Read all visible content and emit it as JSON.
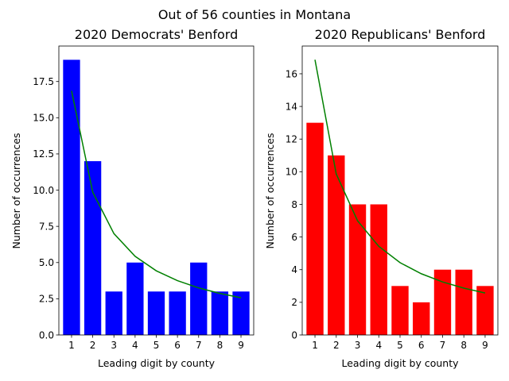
{
  "suptitle": "Out of 56 counties in Montana",
  "chart_data": [
    {
      "type": "bar",
      "title": "2020 Democrats' Benford",
      "xlabel": "Leading digit by county",
      "ylabel": "Number of occurrences",
      "categories": [
        "1",
        "2",
        "3",
        "4",
        "5",
        "6",
        "7",
        "8",
        "9"
      ],
      "values": [
        19,
        12,
        3,
        5,
        3,
        3,
        5,
        3,
        3
      ],
      "bar_color": "#0000ff",
      "expected": [
        16.86,
        9.86,
        7.0,
        5.43,
        4.43,
        3.75,
        3.25,
        2.87,
        2.57
      ],
      "expected_color": "#008000",
      "ylim": [
        0,
        19.95
      ],
      "yticks": [
        "0.0",
        "2.5",
        "5.0",
        "7.5",
        "10.0",
        "12.5",
        "15.0",
        "17.5"
      ],
      "ytick_values": [
        0,
        2.5,
        5,
        7.5,
        10,
        12.5,
        15,
        17.5
      ],
      "grid": false
    },
    {
      "type": "bar",
      "title": "2020 Republicans' Benford",
      "xlabel": "Leading digit by county",
      "ylabel": "Number of occurrences",
      "categories": [
        "1",
        "2",
        "3",
        "4",
        "5",
        "6",
        "7",
        "8",
        "9"
      ],
      "values": [
        13,
        11,
        8,
        8,
        3,
        2,
        4,
        4,
        3
      ],
      "bar_color": "#ff0000",
      "expected": [
        16.86,
        9.86,
        7.0,
        5.43,
        4.43,
        3.75,
        3.25,
        2.87,
        2.57
      ],
      "expected_color": "#008000",
      "ylim": [
        0,
        17.7
      ],
      "yticks": [
        "0",
        "2",
        "4",
        "6",
        "8",
        "10",
        "12",
        "14",
        "16"
      ],
      "ytick_values": [
        0,
        2,
        4,
        6,
        8,
        10,
        12,
        14,
        16
      ],
      "grid": false
    }
  ]
}
